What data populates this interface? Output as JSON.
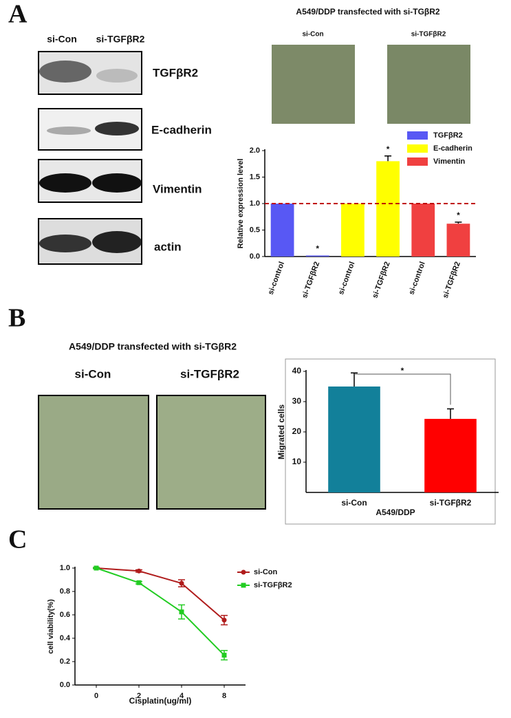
{
  "figure": {
    "panel_labels": [
      "A",
      "B",
      "C"
    ],
    "blot_lanes": [
      "si-Con",
      "si-TGFβR2"
    ],
    "blot_proteins": [
      "TGFβR2",
      "E-cadherin",
      "Vimentin",
      "actin"
    ],
    "micrograph_a": {
      "title": "A549/DDP transfected with si-TGβR2",
      "lanes": [
        "si-Con",
        "si-TGFβR2"
      ]
    },
    "micrograph_b": {
      "title": "A549/DDP transfected with si-TGβR2",
      "lanes": [
        "si-Con",
        "si-TGFβR2"
      ]
    }
  },
  "chart_data": [
    {
      "type": "bar",
      "ylabel": "Relative expression level",
      "categories": [
        "si-control",
        "si-TGFβR2",
        "si-control",
        "si-TGFβR2",
        "si-control",
        "si-TGFβR2"
      ],
      "series": [
        {
          "name": "TGFβR2",
          "color": "#5858f4",
          "values": [
            1,
            0.02,
            null,
            null,
            null,
            null
          ],
          "errors": [
            null,
            null,
            null,
            null,
            null,
            null
          ]
        },
        {
          "name": "E-cadherin",
          "color": "#ffff00",
          "values": [
            null,
            null,
            1,
            1.8,
            null,
            null
          ],
          "errors": [
            null,
            null,
            null,
            0.1,
            null,
            null
          ]
        },
        {
          "name": "Vimentin",
          "color": "#f04040",
          "values": [
            null,
            null,
            null,
            null,
            1,
            0.62
          ],
          "errors": [
            null,
            null,
            null,
            null,
            null,
            0.03
          ]
        }
      ],
      "ylim": [
        0,
        2
      ],
      "yticks": [
        {
          "value": 0,
          "label": "0.0"
        },
        0.5,
        {
          "value": 1,
          "label": "1.0"
        },
        1.5,
        {
          "value": 2,
          "label": "2.0"
        }
      ],
      "reference_line": 1,
      "reference_color": "#c00000",
      "annotations": [
        "*",
        "*",
        "*"
      ],
      "legend": "upper right"
    },
    {
      "type": "bar",
      "ylabel": "Migrated cells",
      "xlabel": "A549/DDP",
      "categories": [
        "si-Con",
        "si-TGFβR2"
      ],
      "values": [
        35,
        24.3
      ],
      "errors": [
        4.5,
        3.3
      ],
      "colors": [
        "#12809a",
        "#ff0000"
      ],
      "ylim": [
        0,
        40
      ],
      "yticks": [
        10,
        20,
        30,
        40
      ],
      "annotations": [
        "*"
      ]
    },
    {
      "type": "line",
      "ylabel": "cell viability(%)",
      "xlabel": "Cisplatin(ug/ml)",
      "categories": [
        "0",
        "2",
        "4",
        "8"
      ],
      "series": [
        {
          "name": "si-Con",
          "color": "#b01c1c",
          "values": [
            1.0,
            0.975,
            0.87,
            0.555
          ],
          "errors": [
            0.005,
            0.01,
            0.03,
            0.04
          ]
        },
        {
          "name": "si-TGFβR2",
          "color": "#22cc22",
          "values": [
            1.0,
            0.875,
            0.625,
            0.255
          ],
          "errors": [
            0.005,
            0.01,
            0.06,
            0.04
          ]
        }
      ],
      "ylim": [
        0,
        1
      ],
      "yticks": [
        {
          "value": 0,
          "label": "0.0"
        },
        0.2,
        0.4,
        0.6,
        0.8,
        {
          "value": 1,
          "label": "1.0"
        }
      ],
      "legend": "upper right"
    }
  ]
}
